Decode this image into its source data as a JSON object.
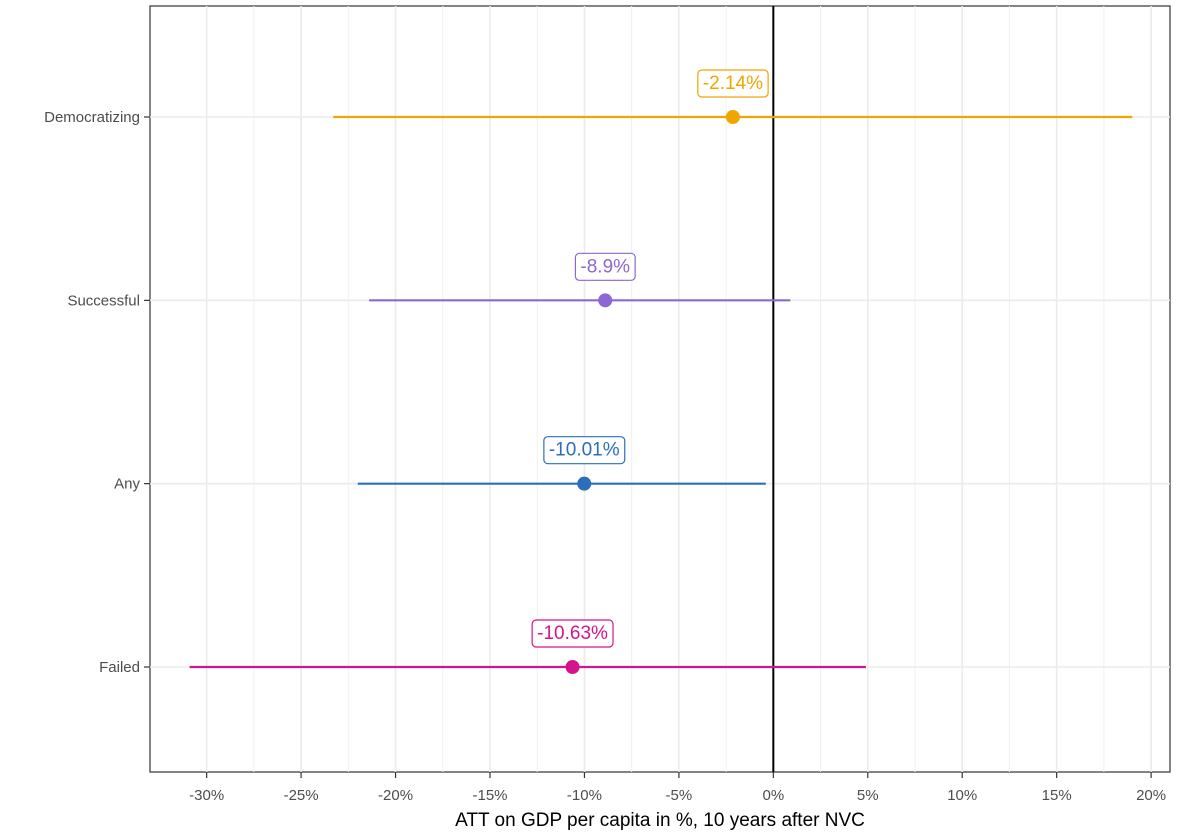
{
  "chart_data": {
    "type": "dot-interval",
    "title": "",
    "xlabel": "ATT on GDP per capita in %, 10 years after NVC",
    "ylabel": "",
    "xlim": [
      -33,
      21
    ],
    "x_ticks": [
      -30,
      -25,
      -20,
      -15,
      -10,
      -5,
      0,
      5,
      10,
      15,
      20
    ],
    "x_tick_labels": [
      "-30%",
      "-25%",
      "-20%",
      "-15%",
      "-10%",
      "-5%",
      "0%",
      "5%",
      "10%",
      "15%",
      "20%"
    ],
    "categories": [
      "Democratizing",
      "Successful",
      "Any",
      "Failed"
    ],
    "reference_line": 0,
    "grid": true,
    "series": [
      {
        "category": "Democratizing",
        "estimate": -2.14,
        "low": -23.3,
        "high": 19.0,
        "label": "-2.14%",
        "color": "#F0A500"
      },
      {
        "category": "Successful",
        "estimate": -8.9,
        "low": -21.4,
        "high": 0.9,
        "label": "-8.9%",
        "color": "#8B68D4"
      },
      {
        "category": "Any",
        "estimate": -10.01,
        "low": -22.0,
        "high": -0.4,
        "label": "-10.01%",
        "color": "#2D6EBA"
      },
      {
        "category": "Failed",
        "estimate": -10.63,
        "low": -30.9,
        "high": 4.9,
        "label": "-10.63%",
        "color": "#D4148C"
      }
    ]
  }
}
